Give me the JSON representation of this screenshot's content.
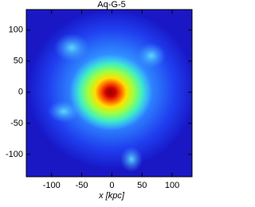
{
  "chart_data": {
    "type": "image",
    "title": "Aq-G-5",
    "x_label": "x [kpc]",
    "xlim": [
      -142,
      133
    ],
    "ylim": [
      -136,
      133
    ],
    "xticks": [
      -100,
      -50,
      0,
      50,
      100
    ],
    "yticks": [
      -100,
      -50,
      0,
      50,
      100
    ]
  }
}
